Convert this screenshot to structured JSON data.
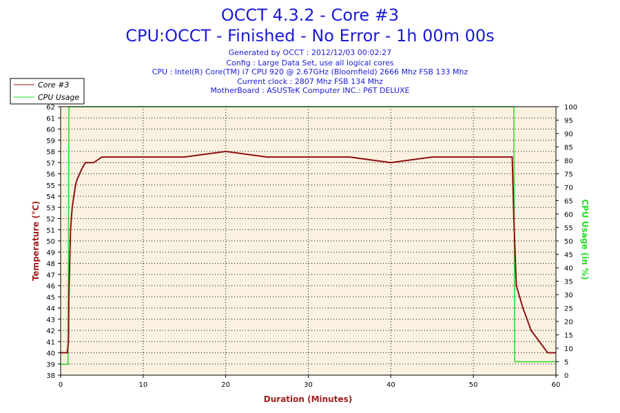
{
  "chart_data": {
    "type": "line",
    "title": "OCCT 4.3.2 - Core #3",
    "subtitle": "CPU:OCCT - Finished - No Error - 1h 00m 00s",
    "info_lines": [
      "Generated by OCCT : 2012/12/03 00:02:27",
      "Config : Large Data Set, use all logical cores",
      "CPU : Intel(R) Core(TM) i7 CPU 920 @ 2.67GHz (Bloomfield) 2666 Mhz FSB 133 Mhz",
      "Current clock : 2807 Mhz FSB 134 Mhz",
      "MotherBoard : ASUSTeK Computer INC.: P6T DELUXE"
    ],
    "xlabel": "Duration (Minutes)",
    "ylabel_left": "Temperature (°C)",
    "ylabel_right": "CPU Usage (in %)",
    "xlim": [
      0,
      60
    ],
    "ylim_left": [
      38,
      62
    ],
    "ylim_right": [
      0,
      100
    ],
    "x_ticks": [
      "0",
      "10",
      "20",
      "30",
      "40",
      "50",
      "60"
    ],
    "y_left_ticks": [
      "38",
      "39",
      "40",
      "41",
      "42",
      "43",
      "44",
      "45",
      "46",
      "47",
      "48",
      "49",
      "50",
      "51",
      "52",
      "53",
      "54",
      "55",
      "56",
      "57",
      "58",
      "59",
      "60",
      "61",
      "62"
    ],
    "y_right_ticks": [
      "0",
      "5",
      "10",
      "15",
      "20",
      "25",
      "30",
      "35",
      "40",
      "45",
      "50",
      "55",
      "60",
      "65",
      "70",
      "75",
      "80",
      "85",
      "90",
      "95",
      "100"
    ],
    "grid": true,
    "legend_position": "top-left",
    "colors": {
      "temperature": "#8b1010",
      "cpu_usage": "#22dd22",
      "plot_background": "#fbf1e1",
      "title": "#1a1ad6",
      "xlabel": "#a02020",
      "ylabel_left": "#a02020",
      "ylabel_right": "#22dd22"
    },
    "series": [
      {
        "name": "Core #3",
        "axis": "left",
        "x": [
          0,
          0.8,
          0.95,
          1.0,
          1.2,
          1.4,
          1.6,
          1.8,
          2.0,
          2.3,
          2.6,
          3.0,
          4.0,
          5.0,
          7.0,
          10.0,
          15.0,
          20.0,
          25.0,
          30.0,
          35.0,
          40.0,
          45.0,
          50.0,
          54.7,
          54.9,
          55.2,
          55.6,
          56.0,
          56.5,
          57.0,
          57.5,
          58.0,
          58.5,
          59.0,
          59.5,
          60.0
        ],
        "values": [
          40,
          40,
          41,
          45,
          51,
          53,
          54,
          55,
          55.5,
          56,
          56.5,
          57,
          57,
          57.5,
          57.5,
          57.5,
          57.5,
          58,
          57.5,
          57.5,
          57.5,
          57,
          57.5,
          57.5,
          57.5,
          52,
          46,
          45,
          44,
          43,
          42,
          41.5,
          41,
          40.5,
          40,
          40,
          40
        ]
      },
      {
        "name": "CPU Usage",
        "axis": "right",
        "x": [
          0,
          0.9,
          1.0,
          54.8,
          54.9,
          55.0,
          60.0
        ],
        "values": [
          4,
          4,
          100,
          100,
          100,
          5,
          5
        ]
      }
    ]
  }
}
